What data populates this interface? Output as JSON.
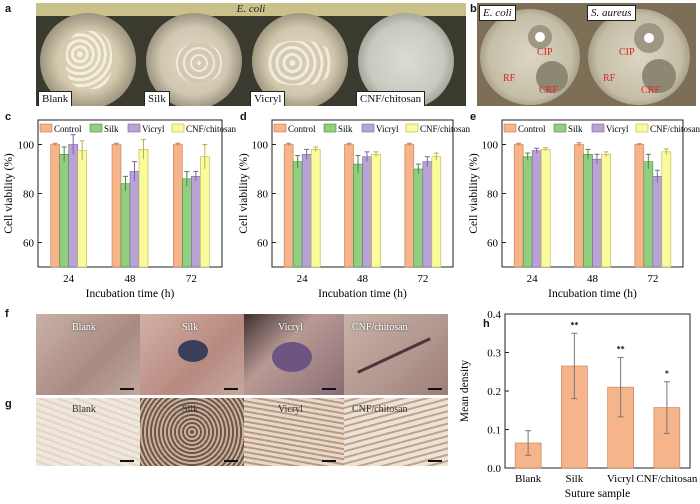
{
  "panels": {
    "a": {
      "letter": "a",
      "title": "E. coli",
      "plates": [
        "Blank",
        "Silk",
        "Vicryl",
        "CNF/chitosan"
      ]
    },
    "b": {
      "letter": "b",
      "plates": [
        {
          "title": "E. coli",
          "labels": [
            "CIP",
            "RF",
            "CRF"
          ]
        },
        {
          "title": "S. aureus",
          "labels": [
            "CIP",
            "RF",
            "CRF"
          ]
        }
      ]
    },
    "f": {
      "letter": "f",
      "labels": [
        "Blank",
        "Silk",
        "Vicryl",
        "CNF/chitosan"
      ]
    },
    "g": {
      "letter": "g",
      "labels": [
        "Blank",
        "Silk",
        "Vicryl",
        "CNF/chitosan"
      ]
    }
  },
  "colors": {
    "control": "#f5b48a",
    "silk": "#8fcf7f",
    "vicryl": "#b9a3d6",
    "cnf": "#fbfa9c",
    "h_bar": "#f5b48a"
  },
  "chart_data": [
    {
      "id": "c",
      "type": "bar",
      "categories": [
        "24",
        "48",
        "72"
      ],
      "series": [
        {
          "name": "Control",
          "values": [
            100,
            100,
            100
          ],
          "errors": [
            0.5,
            0.5,
            0.5
          ]
        },
        {
          "name": "Silk",
          "values": [
            96,
            84,
            86
          ],
          "errors": [
            3,
            3,
            3
          ]
        },
        {
          "name": "Vicryl",
          "values": [
            100,
            89,
            87
          ],
          "errors": [
            4,
            4,
            2
          ]
        },
        {
          "name": "CNF/chitosan",
          "values": [
            97.5,
            98,
            95
          ],
          "errors": [
            4,
            4,
            5
          ]
        }
      ],
      "xlabel": "Incubation time (h)",
      "ylabel": "Cell viability (%)",
      "ylim": [
        50,
        110
      ],
      "yticks": [
        "60",
        "80",
        "100"
      ]
    },
    {
      "id": "d",
      "type": "bar",
      "categories": [
        "24",
        "48",
        "72"
      ],
      "series": [
        {
          "name": "Control",
          "values": [
            100,
            100,
            100
          ],
          "errors": [
            0.5,
            0.5,
            0.5
          ]
        },
        {
          "name": "Silk",
          "values": [
            93,
            92,
            90
          ],
          "errors": [
            2.5,
            3.5,
            2
          ]
        },
        {
          "name": "Vicryl",
          "values": [
            96,
            95,
            93
          ],
          "errors": [
            2,
            2,
            2
          ]
        },
        {
          "name": "CNF/chitosan",
          "values": [
            98,
            96,
            95
          ],
          "errors": [
            1,
            1,
            1.5
          ]
        }
      ],
      "xlabel": "Incubation time (h)",
      "ylabel": "Cell viability (%)",
      "ylim": [
        50,
        110
      ],
      "yticks": [
        "60",
        "80",
        "100"
      ]
    },
    {
      "id": "e",
      "type": "bar",
      "categories": [
        "24",
        "48",
        "72"
      ],
      "series": [
        {
          "name": "Control",
          "values": [
            100,
            100,
            100
          ],
          "errors": [
            0.5,
            0.7,
            0.3
          ]
        },
        {
          "name": "Silk",
          "values": [
            95,
            96,
            93
          ],
          "errors": [
            1.5,
            2,
            3
          ]
        },
        {
          "name": "Vicryl",
          "values": [
            97.5,
            94,
            87
          ],
          "errors": [
            1,
            2,
            2.5
          ]
        },
        {
          "name": "CNF/chitosan",
          "values": [
            98,
            96,
            97
          ],
          "errors": [
            0.7,
            1,
            1.2
          ]
        }
      ],
      "xlabel": "Incubation time (h)",
      "ylabel": "Cell viability (%)",
      "ylim": [
        50,
        110
      ],
      "yticks": [
        "60",
        "80",
        "100"
      ]
    },
    {
      "id": "h",
      "type": "bar",
      "categories": [
        "Blank",
        "Silk",
        "Vicryl",
        "CNF/chitosan"
      ],
      "values": [
        0.065,
        0.265,
        0.21,
        0.157
      ],
      "errors": [
        0.032,
        0.085,
        0.077,
        0.067
      ],
      "significance": [
        "",
        "**",
        "**",
        "*"
      ],
      "xlabel": "Suture sample",
      "ylabel": "Mean density",
      "ylim": [
        0,
        0.4
      ],
      "yticks": [
        "0.0",
        "0.1",
        "0.2",
        "0.3",
        "0.4"
      ]
    }
  ]
}
